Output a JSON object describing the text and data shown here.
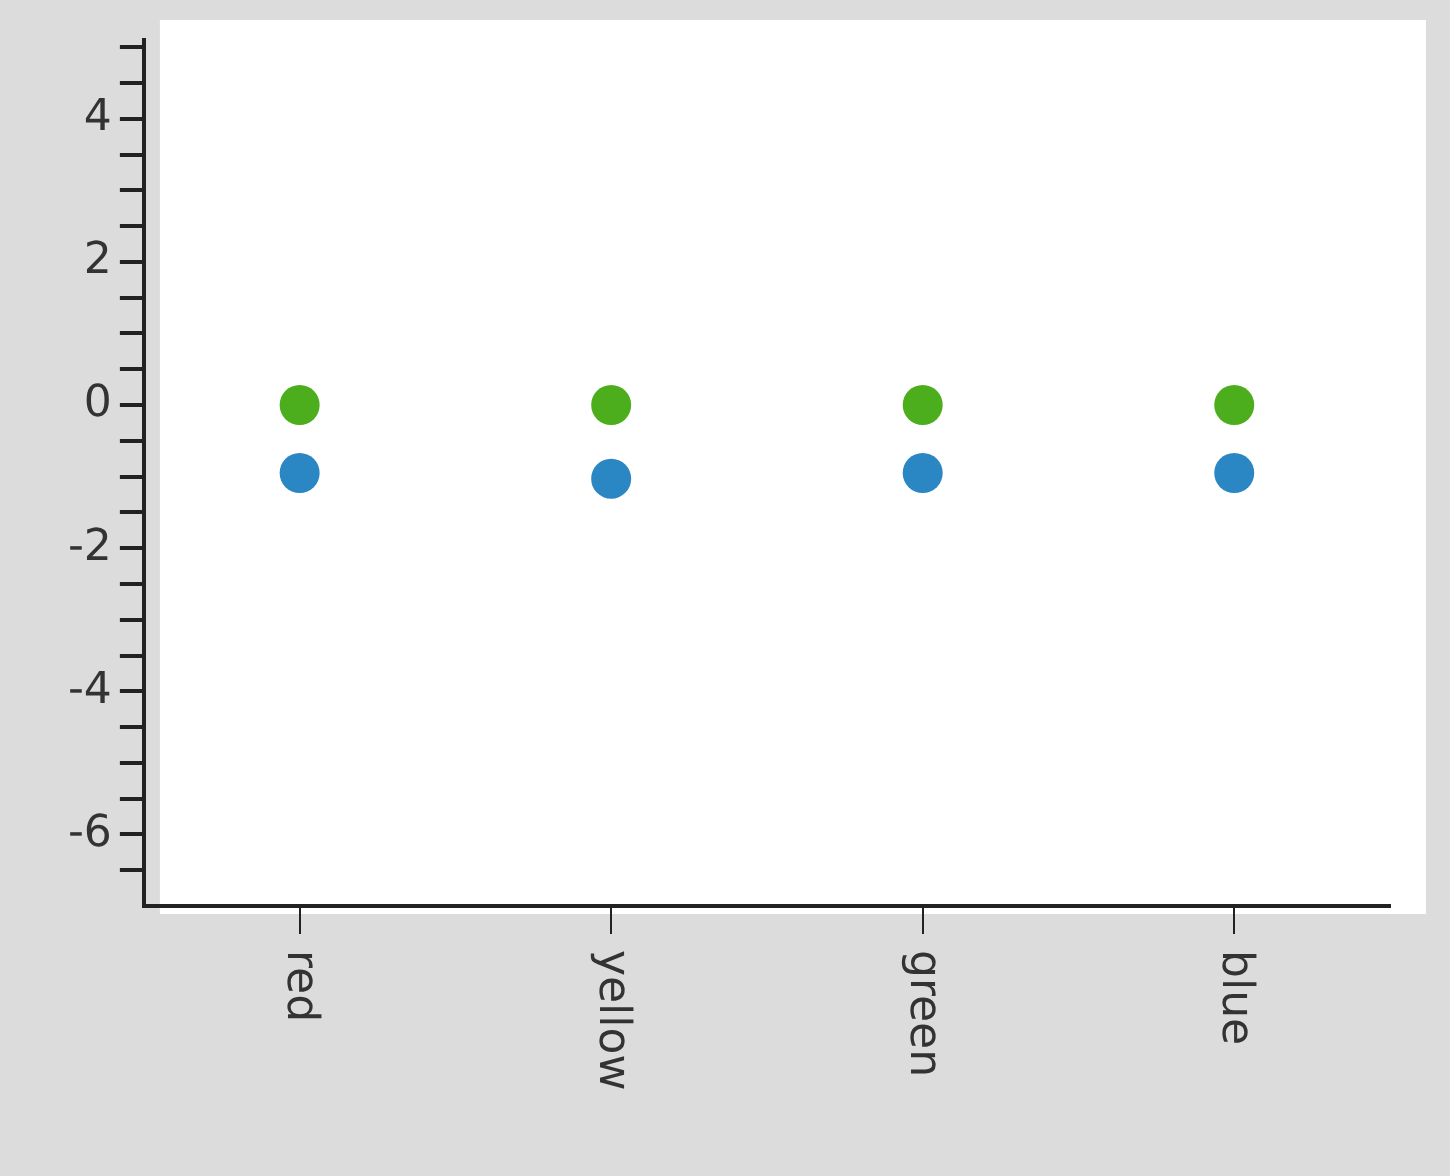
{
  "chart_data": {
    "type": "scatter",
    "categories": [
      "red",
      "yellow",
      "green",
      "blue"
    ],
    "series": [
      {
        "color": "#4cae1c",
        "values": [
          0,
          0,
          0,
          0
        ]
      },
      {
        "color": "#2a87c4",
        "values": [
          -0.95,
          -1.03,
          -0.95,
          -0.95
        ]
      }
    ],
    "ylim": [
      -7,
      5.1
    ],
    "yticks": [
      {
        "value": 5,
        "label": null
      },
      {
        "value": 4.5,
        "label": null
      },
      4,
      {
        "value": 3.5,
        "label": null
      },
      {
        "value": 3,
        "label": null
      },
      {
        "value": 2.5,
        "label": null
      },
      2,
      {
        "value": 1.5,
        "label": null
      },
      {
        "value": 1,
        "label": null
      },
      {
        "value": 0.5,
        "label": null
      },
      0,
      {
        "value": -0.5,
        "label": null
      },
      {
        "value": -1,
        "label": null
      },
      {
        "value": -1.5,
        "label": null
      },
      -2,
      {
        "value": -2.5,
        "label": null
      },
      {
        "value": -3,
        "label": null
      },
      {
        "value": -3.5,
        "label": null
      },
      -4,
      {
        "value": -4.5,
        "label": null
      },
      {
        "value": -5,
        "label": null
      },
      {
        "value": -5.5,
        "label": null
      },
      -6,
      {
        "value": -6.5,
        "label": null
      }
    ],
    "marker": "circle",
    "grid": false,
    "legend": false
  }
}
